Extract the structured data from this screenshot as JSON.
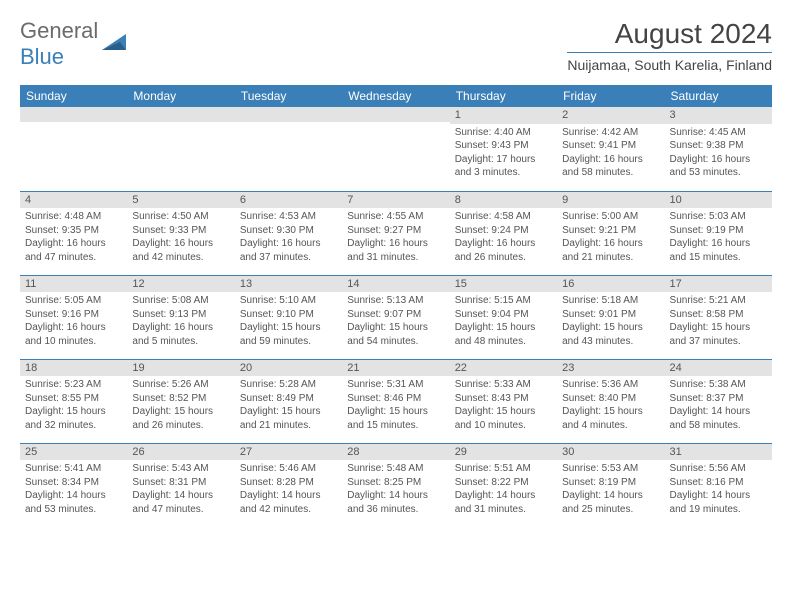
{
  "logo": {
    "text_general": "General",
    "text_blue": "Blue",
    "accent_color": "#3b7fb8",
    "text_color": "#6b6b6b"
  },
  "title": {
    "month_year": "August 2024",
    "location": "Nuijamaa, South Karelia, Finland"
  },
  "colors": {
    "header_bg": "#3b7fb8",
    "header_fg": "#ffffff",
    "band_bg": "#e3e3e3",
    "border": "#3b7fb8",
    "body_text": "#555555",
    "background": "#ffffff"
  },
  "weekdays": [
    "Sunday",
    "Monday",
    "Tuesday",
    "Wednesday",
    "Thursday",
    "Friday",
    "Saturday"
  ],
  "weeks": [
    [
      {
        "day": "",
        "lines": []
      },
      {
        "day": "",
        "lines": []
      },
      {
        "day": "",
        "lines": []
      },
      {
        "day": "",
        "lines": []
      },
      {
        "day": "1",
        "lines": [
          "Sunrise: 4:40 AM",
          "Sunset: 9:43 PM",
          "Daylight: 17 hours",
          "and 3 minutes."
        ]
      },
      {
        "day": "2",
        "lines": [
          "Sunrise: 4:42 AM",
          "Sunset: 9:41 PM",
          "Daylight: 16 hours",
          "and 58 minutes."
        ]
      },
      {
        "day": "3",
        "lines": [
          "Sunrise: 4:45 AM",
          "Sunset: 9:38 PM",
          "Daylight: 16 hours",
          "and 53 minutes."
        ]
      }
    ],
    [
      {
        "day": "4",
        "lines": [
          "Sunrise: 4:48 AM",
          "Sunset: 9:35 PM",
          "Daylight: 16 hours",
          "and 47 minutes."
        ]
      },
      {
        "day": "5",
        "lines": [
          "Sunrise: 4:50 AM",
          "Sunset: 9:33 PM",
          "Daylight: 16 hours",
          "and 42 minutes."
        ]
      },
      {
        "day": "6",
        "lines": [
          "Sunrise: 4:53 AM",
          "Sunset: 9:30 PM",
          "Daylight: 16 hours",
          "and 37 minutes."
        ]
      },
      {
        "day": "7",
        "lines": [
          "Sunrise: 4:55 AM",
          "Sunset: 9:27 PM",
          "Daylight: 16 hours",
          "and 31 minutes."
        ]
      },
      {
        "day": "8",
        "lines": [
          "Sunrise: 4:58 AM",
          "Sunset: 9:24 PM",
          "Daylight: 16 hours",
          "and 26 minutes."
        ]
      },
      {
        "day": "9",
        "lines": [
          "Sunrise: 5:00 AM",
          "Sunset: 9:21 PM",
          "Daylight: 16 hours",
          "and 21 minutes."
        ]
      },
      {
        "day": "10",
        "lines": [
          "Sunrise: 5:03 AM",
          "Sunset: 9:19 PM",
          "Daylight: 16 hours",
          "and 15 minutes."
        ]
      }
    ],
    [
      {
        "day": "11",
        "lines": [
          "Sunrise: 5:05 AM",
          "Sunset: 9:16 PM",
          "Daylight: 16 hours",
          "and 10 minutes."
        ]
      },
      {
        "day": "12",
        "lines": [
          "Sunrise: 5:08 AM",
          "Sunset: 9:13 PM",
          "Daylight: 16 hours",
          "and 5 minutes."
        ]
      },
      {
        "day": "13",
        "lines": [
          "Sunrise: 5:10 AM",
          "Sunset: 9:10 PM",
          "Daylight: 15 hours",
          "and 59 minutes."
        ]
      },
      {
        "day": "14",
        "lines": [
          "Sunrise: 5:13 AM",
          "Sunset: 9:07 PM",
          "Daylight: 15 hours",
          "and 54 minutes."
        ]
      },
      {
        "day": "15",
        "lines": [
          "Sunrise: 5:15 AM",
          "Sunset: 9:04 PM",
          "Daylight: 15 hours",
          "and 48 minutes."
        ]
      },
      {
        "day": "16",
        "lines": [
          "Sunrise: 5:18 AM",
          "Sunset: 9:01 PM",
          "Daylight: 15 hours",
          "and 43 minutes."
        ]
      },
      {
        "day": "17",
        "lines": [
          "Sunrise: 5:21 AM",
          "Sunset: 8:58 PM",
          "Daylight: 15 hours",
          "and 37 minutes."
        ]
      }
    ],
    [
      {
        "day": "18",
        "lines": [
          "Sunrise: 5:23 AM",
          "Sunset: 8:55 PM",
          "Daylight: 15 hours",
          "and 32 minutes."
        ]
      },
      {
        "day": "19",
        "lines": [
          "Sunrise: 5:26 AM",
          "Sunset: 8:52 PM",
          "Daylight: 15 hours",
          "and 26 minutes."
        ]
      },
      {
        "day": "20",
        "lines": [
          "Sunrise: 5:28 AM",
          "Sunset: 8:49 PM",
          "Daylight: 15 hours",
          "and 21 minutes."
        ]
      },
      {
        "day": "21",
        "lines": [
          "Sunrise: 5:31 AM",
          "Sunset: 8:46 PM",
          "Daylight: 15 hours",
          "and 15 minutes."
        ]
      },
      {
        "day": "22",
        "lines": [
          "Sunrise: 5:33 AM",
          "Sunset: 8:43 PM",
          "Daylight: 15 hours",
          "and 10 minutes."
        ]
      },
      {
        "day": "23",
        "lines": [
          "Sunrise: 5:36 AM",
          "Sunset: 8:40 PM",
          "Daylight: 15 hours",
          "and 4 minutes."
        ]
      },
      {
        "day": "24",
        "lines": [
          "Sunrise: 5:38 AM",
          "Sunset: 8:37 PM",
          "Daylight: 14 hours",
          "and 58 minutes."
        ]
      }
    ],
    [
      {
        "day": "25",
        "lines": [
          "Sunrise: 5:41 AM",
          "Sunset: 8:34 PM",
          "Daylight: 14 hours",
          "and 53 minutes."
        ]
      },
      {
        "day": "26",
        "lines": [
          "Sunrise: 5:43 AM",
          "Sunset: 8:31 PM",
          "Daylight: 14 hours",
          "and 47 minutes."
        ]
      },
      {
        "day": "27",
        "lines": [
          "Sunrise: 5:46 AM",
          "Sunset: 8:28 PM",
          "Daylight: 14 hours",
          "and 42 minutes."
        ]
      },
      {
        "day": "28",
        "lines": [
          "Sunrise: 5:48 AM",
          "Sunset: 8:25 PM",
          "Daylight: 14 hours",
          "and 36 minutes."
        ]
      },
      {
        "day": "29",
        "lines": [
          "Sunrise: 5:51 AM",
          "Sunset: 8:22 PM",
          "Daylight: 14 hours",
          "and 31 minutes."
        ]
      },
      {
        "day": "30",
        "lines": [
          "Sunrise: 5:53 AM",
          "Sunset: 8:19 PM",
          "Daylight: 14 hours",
          "and 25 minutes."
        ]
      },
      {
        "day": "31",
        "lines": [
          "Sunrise: 5:56 AM",
          "Sunset: 8:16 PM",
          "Daylight: 14 hours",
          "and 19 minutes."
        ]
      }
    ]
  ]
}
